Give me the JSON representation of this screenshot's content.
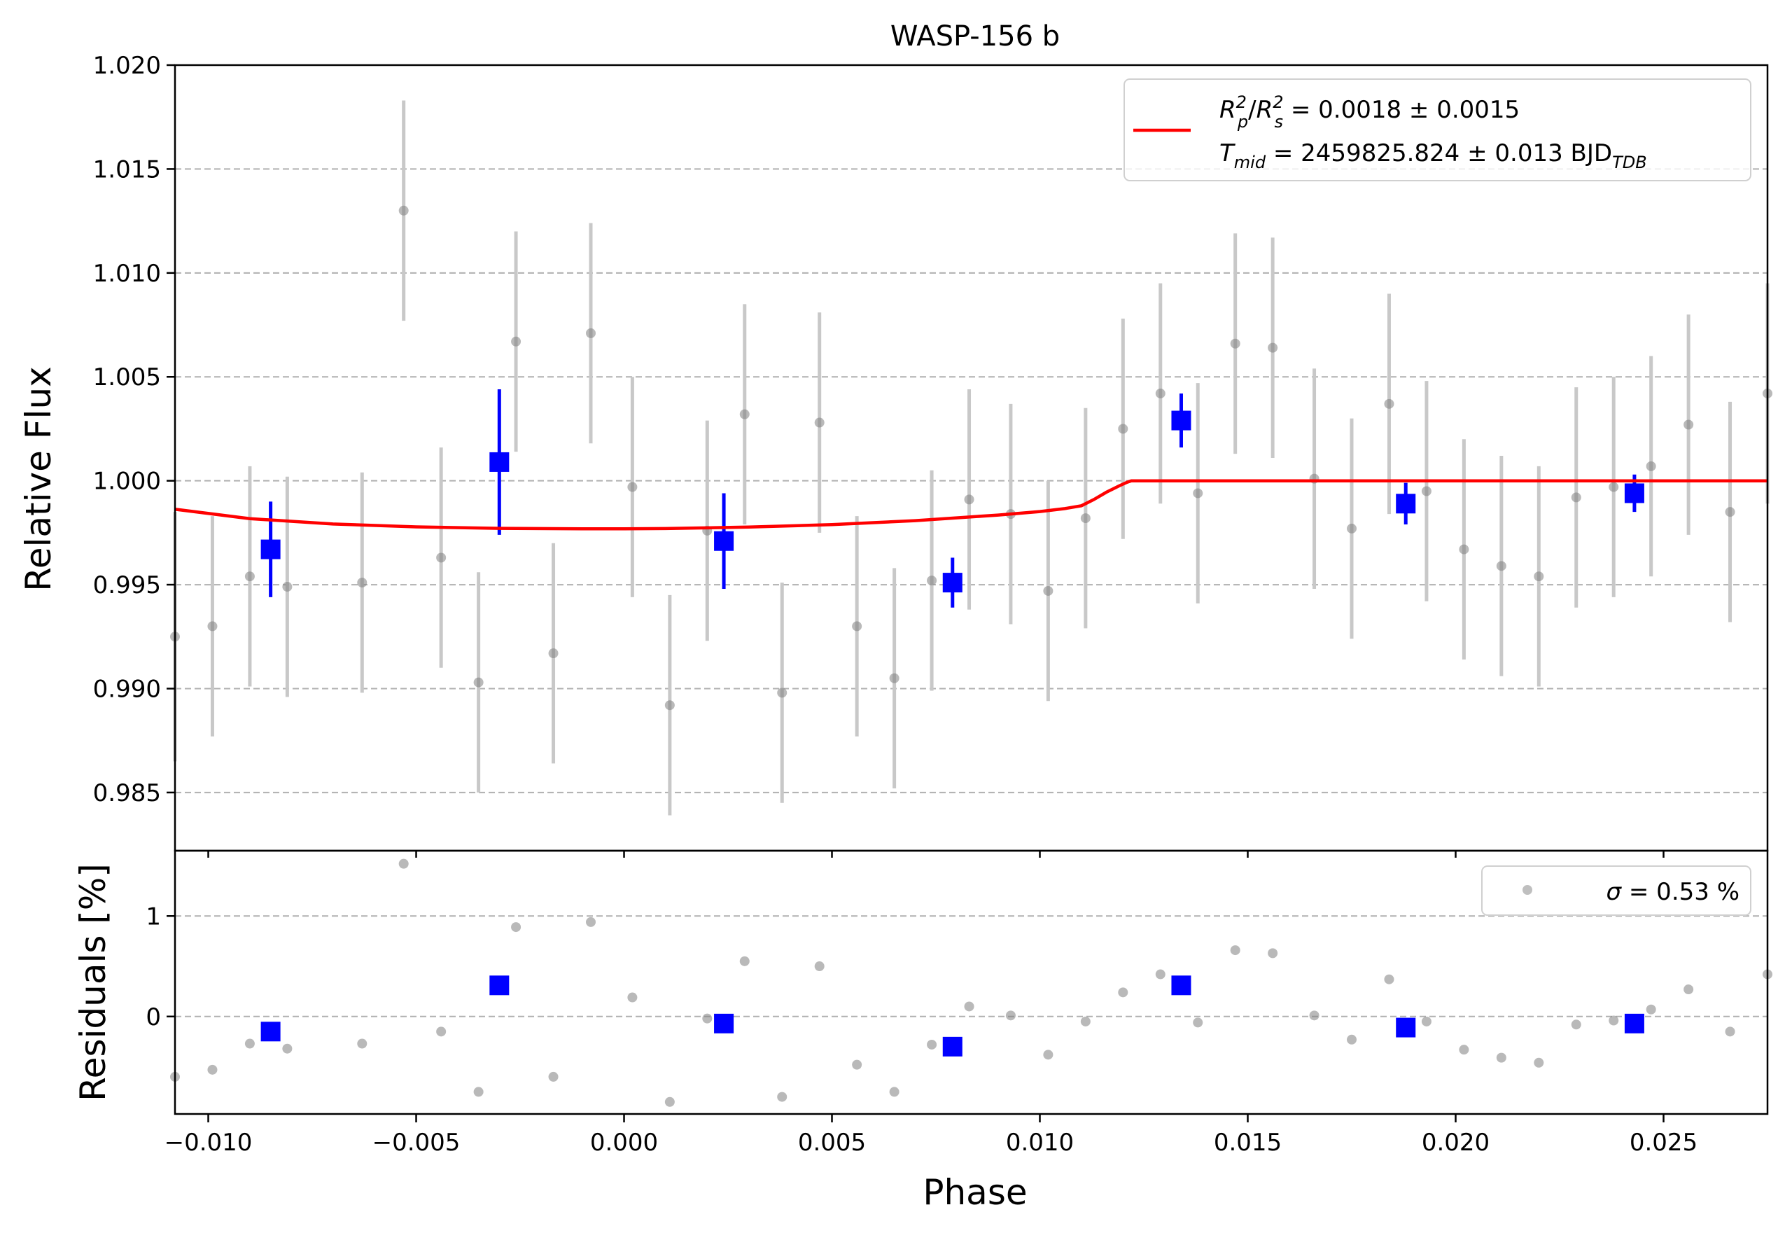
{
  "chart_data": [
    {
      "type": "scatter",
      "title": "WASP-156 b",
      "xlabel": "",
      "ylabel": "Relative Flux",
      "xlim": [
        -0.0108,
        0.0275
      ],
      "ylim": [
        0.9822,
        1.02
      ],
      "xticks": [
        -0.01,
        -0.005,
        0.0,
        0.005,
        0.01,
        0.015,
        0.02,
        0.025
      ],
      "yticks": [
        0.985,
        0.99,
        0.995,
        1.0,
        1.005,
        1.01,
        1.015,
        1.02
      ],
      "ytick_labels": [
        "0.985",
        "0.990",
        "0.995",
        "1.000",
        "1.005",
        "1.010",
        "1.015",
        "1.020"
      ],
      "grid": "horizontal dashed",
      "legend_placement": "upper right",
      "legend": {
        "model_line": {
          "line1": {
            "base_left": "R",
            "sup_left": "2",
            "sub_left": "p",
            "slash": "/",
            "base_right": "R",
            "sup_right": "2",
            "sub_right": "s",
            "value": " = 0.0018 ± 0.0015"
          },
          "line2": {
            "base": "T",
            "sub": "mid",
            "value": " = 2459825.824 ± 0.013 BJD",
            "unit_sub": "TDB"
          }
        }
      },
      "colors": {
        "raw": "#808080",
        "raw_err": "#c8c8c8",
        "binned": "#0000ff",
        "model": "#ff0000",
        "grid": "#b0b0b0"
      },
      "series": [
        {
          "role": "raw",
          "x": [
            -0.0108,
            -0.0099,
            -0.009,
            -0.0081,
            -0.0063,
            -0.0053,
            -0.0044,
            -0.0035,
            -0.0026,
            -0.0017,
            -0.0008,
            0.0002,
            0.0011,
            0.002,
            0.0029,
            0.0038,
            0.0047,
            0.0056,
            0.0065,
            0.0074,
            0.0083,
            0.0093,
            0.0102,
            0.0111,
            0.012,
            0.0129,
            0.0138,
            0.0147,
            0.0156,
            0.0166,
            0.0175,
            0.0184,
            0.0193,
            0.0202,
            0.0211,
            0.022,
            0.0229,
            0.0238,
            0.0247,
            0.0256,
            0.0266,
            0.0275
          ],
          "y": [
            0.9925,
            0.993,
            0.9954,
            0.9949,
            0.9951,
            1.013,
            0.9963,
            0.9903,
            1.0067,
            0.9917,
            1.0071,
            0.9997,
            0.9892,
            0.9976,
            1.0032,
            0.9898,
            1.0028,
            0.993,
            0.9905,
            0.9952,
            0.9991,
            0.9984,
            0.9947,
            0.9982,
            1.0025,
            1.0042,
            0.9994,
            1.0066,
            1.0064,
            1.0001,
            0.9977,
            1.0037,
            0.9995,
            0.9967,
            0.9959,
            0.9954,
            0.9992,
            0.9997,
            1.0007,
            1.0027,
            0.9985,
            1.0042
          ],
          "yerr": [
            0.006,
            0.0053,
            0.0053,
            0.0053,
            0.0053,
            0.0053,
            0.0053,
            0.0053,
            0.0053,
            0.0053,
            0.0053,
            0.0053,
            0.0053,
            0.0053,
            0.0053,
            0.0053,
            0.0053,
            0.0053,
            0.0053,
            0.0053,
            0.0053,
            0.0053,
            0.0053,
            0.0053,
            0.0053,
            0.0053,
            0.0053,
            0.0053,
            0.0053,
            0.0053,
            0.0053,
            0.0053,
            0.0053,
            0.0053,
            0.0053,
            0.0053,
            0.0053,
            0.0053,
            0.0053,
            0.0053,
            0.0053,
            0.0053
          ]
        },
        {
          "role": "binned",
          "x": [
            -0.0085,
            -0.003,
            0.0024,
            0.0079,
            0.0134,
            0.0188,
            0.0243
          ],
          "y": [
            0.9967,
            1.0009,
            0.9971,
            0.9951,
            1.0029,
            0.9989,
            0.9994
          ],
          "yerr": [
            0.0023,
            0.0035,
            0.0023,
            0.0012,
            0.0013,
            0.001,
            0.0009
          ]
        },
        {
          "role": "model",
          "x": [
            -0.0108,
            -0.009,
            -0.007,
            -0.005,
            -0.003,
            -0.001,
            0.0,
            0.001,
            0.003,
            0.005,
            0.007,
            0.009,
            0.01,
            0.0106,
            0.011,
            0.0113,
            0.0116,
            0.0119,
            0.0121,
            0.0122,
            0.0275
          ],
          "y": [
            0.99863,
            0.99818,
            0.99792,
            0.99778,
            0.99771,
            0.99769,
            0.99769,
            0.9977,
            0.99777,
            0.99789,
            0.99808,
            0.99835,
            0.99852,
            0.99866,
            0.9988,
            0.9991,
            0.99945,
            0.99975,
            0.99993,
            1.0,
            1.0
          ]
        }
      ]
    },
    {
      "type": "scatter",
      "title": "",
      "xlabel": "Phase",
      "ylabel": "Residuals [%]",
      "xlim": [
        -0.0108,
        0.0275
      ],
      "ylim": [
        -0.97,
        1.65
      ],
      "xticks": [
        -0.01,
        -0.005,
        0.0,
        0.005,
        0.01,
        0.015,
        0.02,
        0.025
      ],
      "xtick_labels": [
        "−0.010",
        "−0.005",
        "0.000",
        "0.005",
        "0.010",
        "0.015",
        "0.020",
        "0.025"
      ],
      "yticks": [
        0,
        1
      ],
      "ytick_labels": [
        "0",
        "1"
      ],
      "grid": "horizontal dashed",
      "legend_placement": "upper right",
      "legend": {
        "sigma": {
          "symbol": "σ",
          "value": " = 0.53 %"
        }
      },
      "series": [
        {
          "role": "raw",
          "x": [
            -0.0108,
            -0.0099,
            -0.009,
            -0.0081,
            -0.0063,
            -0.0053,
            -0.0044,
            -0.0035,
            -0.0026,
            -0.0017,
            -0.0008,
            0.0002,
            0.0011,
            0.002,
            0.0029,
            0.0038,
            0.0047,
            0.0056,
            0.0065,
            0.0074,
            0.0083,
            0.0093,
            0.0102,
            0.0111,
            0.012,
            0.0129,
            0.0138,
            0.0147,
            0.0156,
            0.0166,
            0.0175,
            0.0184,
            0.0193,
            0.0202,
            0.0211,
            0.022,
            0.0229,
            0.0238,
            0.0247,
            0.0256,
            0.0266,
            0.0275
          ],
          "y": [
            -0.6,
            -0.53,
            -0.27,
            -0.32,
            -0.27,
            1.52,
            -0.15,
            -0.75,
            0.89,
            -0.6,
            0.94,
            0.19,
            -0.85,
            -0.02,
            0.55,
            -0.8,
            0.5,
            -0.48,
            -0.75,
            -0.28,
            0.1,
            0.01,
            -0.38,
            -0.05,
            0.24,
            0.42,
            -0.06,
            0.66,
            0.63,
            0.01,
            -0.23,
            0.37,
            -0.05,
            -0.33,
            -0.41,
            -0.46,
            -0.08,
            -0.04,
            0.07,
            0.27,
            -0.15,
            0.42
          ]
        },
        {
          "role": "binned",
          "x": [
            -0.0085,
            -0.003,
            0.0024,
            0.0079,
            0.0134,
            0.0188,
            0.0243
          ],
          "y": [
            -0.15,
            0.31,
            -0.07,
            -0.3,
            0.31,
            -0.11,
            -0.07
          ]
        }
      ]
    }
  ]
}
